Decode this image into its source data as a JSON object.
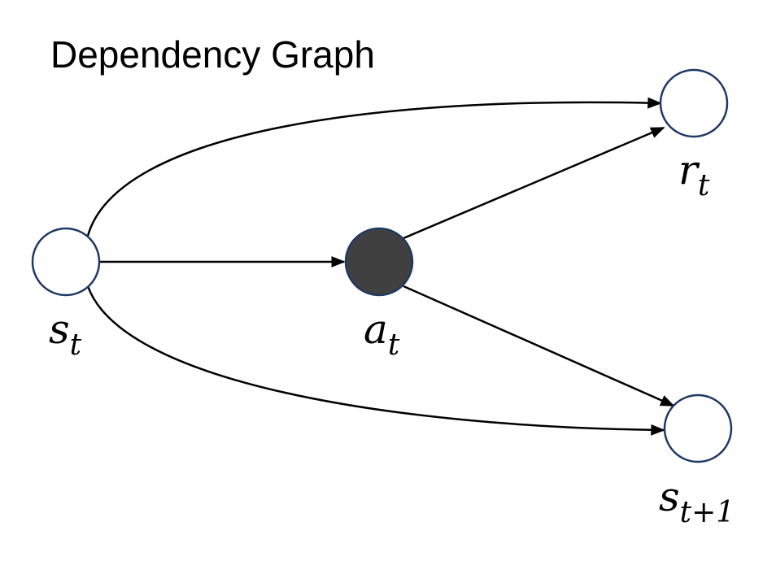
{
  "title": "Dependency Graph",
  "colors": {
    "observed_node_fill": "#ffffff",
    "action_node_fill": "#404040",
    "stroke": "#1f3864",
    "edge": "#000000"
  },
  "nodes": {
    "state": {
      "symbol": "s",
      "subscript": "t"
    },
    "action": {
      "symbol": "a",
      "subscript": "t"
    },
    "reward": {
      "symbol": "r",
      "subscript": "t"
    },
    "next_state": {
      "symbol": "s",
      "subscript": "t+1"
    }
  },
  "edges": [
    {
      "from": "s_t",
      "to": "r_t"
    },
    {
      "from": "s_t",
      "to": "a_t"
    },
    {
      "from": "s_t",
      "to": "s_t+1"
    },
    {
      "from": "a_t",
      "to": "r_t"
    },
    {
      "from": "a_t",
      "to": "s_t+1"
    }
  ]
}
